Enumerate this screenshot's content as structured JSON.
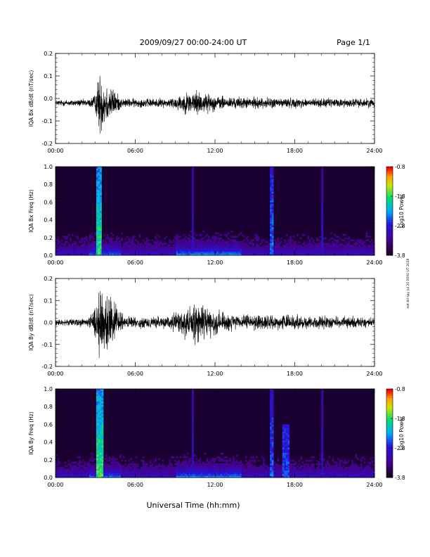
{
  "header": {
    "title": "2009/09/27  00:00-24:00 UT",
    "page": "Page 1/1"
  },
  "side_note": "not till spy Jul 20 0000 UT 2019",
  "xlabel": "Universal Time (hh:mm)",
  "x_ticks": [
    "00:00",
    "06:00",
    "12:00",
    "18:00",
    "24:00"
  ],
  "colors": {
    "trace": "#000000",
    "spectrogram_low": "#1a0030",
    "spectrogram_high": "#ff0000"
  },
  "chart_data": [
    {
      "type": "line",
      "id": "bx",
      "ylabel": "IQA Bx dB/dt (nT/sec)",
      "ylim": [
        -0.2,
        0.2
      ],
      "y_ticks": [
        "0.2",
        "0.1",
        "0.0",
        "-0.1",
        "-0.2"
      ],
      "xlim_hours": [
        0,
        24
      ],
      "envelope": [
        {
          "x": 0,
          "amp": 0.02
        },
        {
          "x": 2.5,
          "amp": 0.025
        },
        {
          "x": 3.0,
          "amp": 0.06
        },
        {
          "x": 3.3,
          "amp": 0.22
        },
        {
          "x": 3.8,
          "amp": 0.15
        },
        {
          "x": 4.5,
          "amp": 0.08
        },
        {
          "x": 5.0,
          "amp": 0.03
        },
        {
          "x": 8.5,
          "amp": 0.03
        },
        {
          "x": 9.5,
          "amp": 0.06
        },
        {
          "x": 10.5,
          "amp": 0.09
        },
        {
          "x": 11.5,
          "amp": 0.06
        },
        {
          "x": 13.0,
          "amp": 0.04
        },
        {
          "x": 16.5,
          "amp": 0.035
        },
        {
          "x": 20.0,
          "amp": 0.03
        },
        {
          "x": 24,
          "amp": 0.03
        }
      ]
    },
    {
      "type": "heatmap",
      "id": "bx_spec",
      "ylabel": "IQA Bx Freq (Hz)",
      "ylim": [
        0.0,
        1.0
      ],
      "y_ticks": [
        "1.0",
        "0.8",
        "0.6",
        "0.4",
        "0.2",
        "0.0"
      ],
      "xlim_hours": [
        0,
        24
      ],
      "colorbar": {
        "label": "Log10 Power",
        "ticks": [
          "-0.8",
          "-1.8",
          "-2.8",
          "-3.8"
        ],
        "range": [
          -3.8,
          -0.8
        ]
      },
      "features": [
        {
          "x": 3.3,
          "width_h": 0.2,
          "fmax": 1.0,
          "power": -1.5
        },
        {
          "x": 10.3,
          "width_h": 0.05,
          "fmax": 1.0,
          "power": -2.8
        },
        {
          "x": 16.3,
          "width_h": 0.1,
          "fmax": 1.0,
          "power": -2.2
        },
        {
          "x": 20.1,
          "width_h": 0.05,
          "fmax": 1.0,
          "power": -2.7
        }
      ]
    },
    {
      "type": "line",
      "id": "by",
      "ylabel": "IQA By dB/dt (nT/sec)",
      "ylim": [
        -0.2,
        0.2
      ],
      "y_ticks": [
        "0.2",
        "0.1",
        "0.0",
        "-0.1",
        "-0.2"
      ],
      "xlim_hours": [
        0,
        24
      ],
      "envelope": [
        {
          "x": 0,
          "amp": 0.02
        },
        {
          "x": 2.5,
          "amp": 0.03
        },
        {
          "x": 3.0,
          "amp": 0.1
        },
        {
          "x": 3.3,
          "amp": 0.24
        },
        {
          "x": 3.8,
          "amp": 0.2
        },
        {
          "x": 4.5,
          "amp": 0.12
        },
        {
          "x": 5.2,
          "amp": 0.04
        },
        {
          "x": 8.5,
          "amp": 0.04
        },
        {
          "x": 9.5,
          "amp": 0.1
        },
        {
          "x": 10.5,
          "amp": 0.13
        },
        {
          "x": 11.8,
          "amp": 0.1
        },
        {
          "x": 13.5,
          "amp": 0.05
        },
        {
          "x": 16.5,
          "amp": 0.05
        },
        {
          "x": 22.0,
          "amp": 0.04
        },
        {
          "x": 24,
          "amp": 0.03
        }
      ]
    },
    {
      "type": "heatmap",
      "id": "by_spec",
      "ylabel": "IQA By Freq (Hz)",
      "ylim": [
        0.0,
        1.0
      ],
      "y_ticks": [
        "1.0",
        "0.8",
        "0.6",
        "0.4",
        "0.2",
        "0.0"
      ],
      "xlim_hours": [
        0,
        24
      ],
      "colorbar": {
        "label": "Log10 Power",
        "ticks": [
          "-0.8",
          "-1.8",
          "-2.8",
          "-3.8"
        ],
        "range": [
          -3.8,
          -0.8
        ]
      },
      "features": [
        {
          "x": 3.3,
          "width_h": 0.25,
          "fmax": 1.0,
          "power": -1.4
        },
        {
          "x": 10.3,
          "width_h": 0.05,
          "fmax": 1.0,
          "power": -2.7
        },
        {
          "x": 16.3,
          "width_h": 0.1,
          "fmax": 1.0,
          "power": -2.3
        },
        {
          "x": 17.3,
          "width_h": 0.3,
          "fmax": 0.6,
          "power": -2.4
        },
        {
          "x": 20.1,
          "width_h": 0.05,
          "fmax": 1.0,
          "power": -2.7
        }
      ]
    }
  ]
}
